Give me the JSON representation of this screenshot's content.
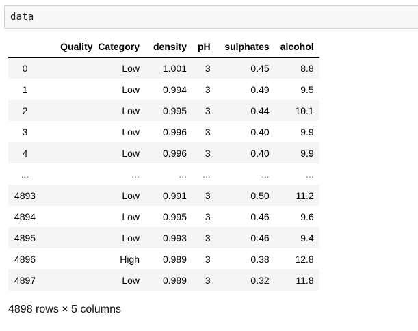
{
  "cell": {
    "code": "data"
  },
  "table": {
    "columns": [
      "",
      "Quality_Category",
      "density",
      "pH",
      "sulphates",
      "alcohol"
    ],
    "rows": [
      {
        "index": "0",
        "cells": [
          "Low",
          "1.001",
          "3",
          "0.45",
          "8.8"
        ]
      },
      {
        "index": "1",
        "cells": [
          "Low",
          "0.994",
          "3",
          "0.49",
          "9.5"
        ]
      },
      {
        "index": "2",
        "cells": [
          "Low",
          "0.995",
          "3",
          "0.44",
          "10.1"
        ]
      },
      {
        "index": "3",
        "cells": [
          "Low",
          "0.996",
          "3",
          "0.40",
          "9.9"
        ]
      },
      {
        "index": "4",
        "cells": [
          "Low",
          "0.996",
          "3",
          "0.40",
          "9.9"
        ]
      },
      {
        "index": "...",
        "cells": [
          "...",
          "...",
          "...",
          "...",
          "..."
        ]
      },
      {
        "index": "4893",
        "cells": [
          "Low",
          "0.991",
          "3",
          "0.50",
          "11.2"
        ]
      },
      {
        "index": "4894",
        "cells": [
          "Low",
          "0.995",
          "3",
          "0.46",
          "9.6"
        ]
      },
      {
        "index": "4895",
        "cells": [
          "Low",
          "0.993",
          "3",
          "0.46",
          "9.4"
        ]
      },
      {
        "index": "4896",
        "cells": [
          "High",
          "0.989",
          "3",
          "0.38",
          "12.8"
        ]
      },
      {
        "index": "4897",
        "cells": [
          "Low",
          "0.989",
          "3",
          "0.32",
          "11.8"
        ]
      }
    ]
  },
  "footer": {
    "shape_text": "4898 rows × 5 columns"
  }
}
